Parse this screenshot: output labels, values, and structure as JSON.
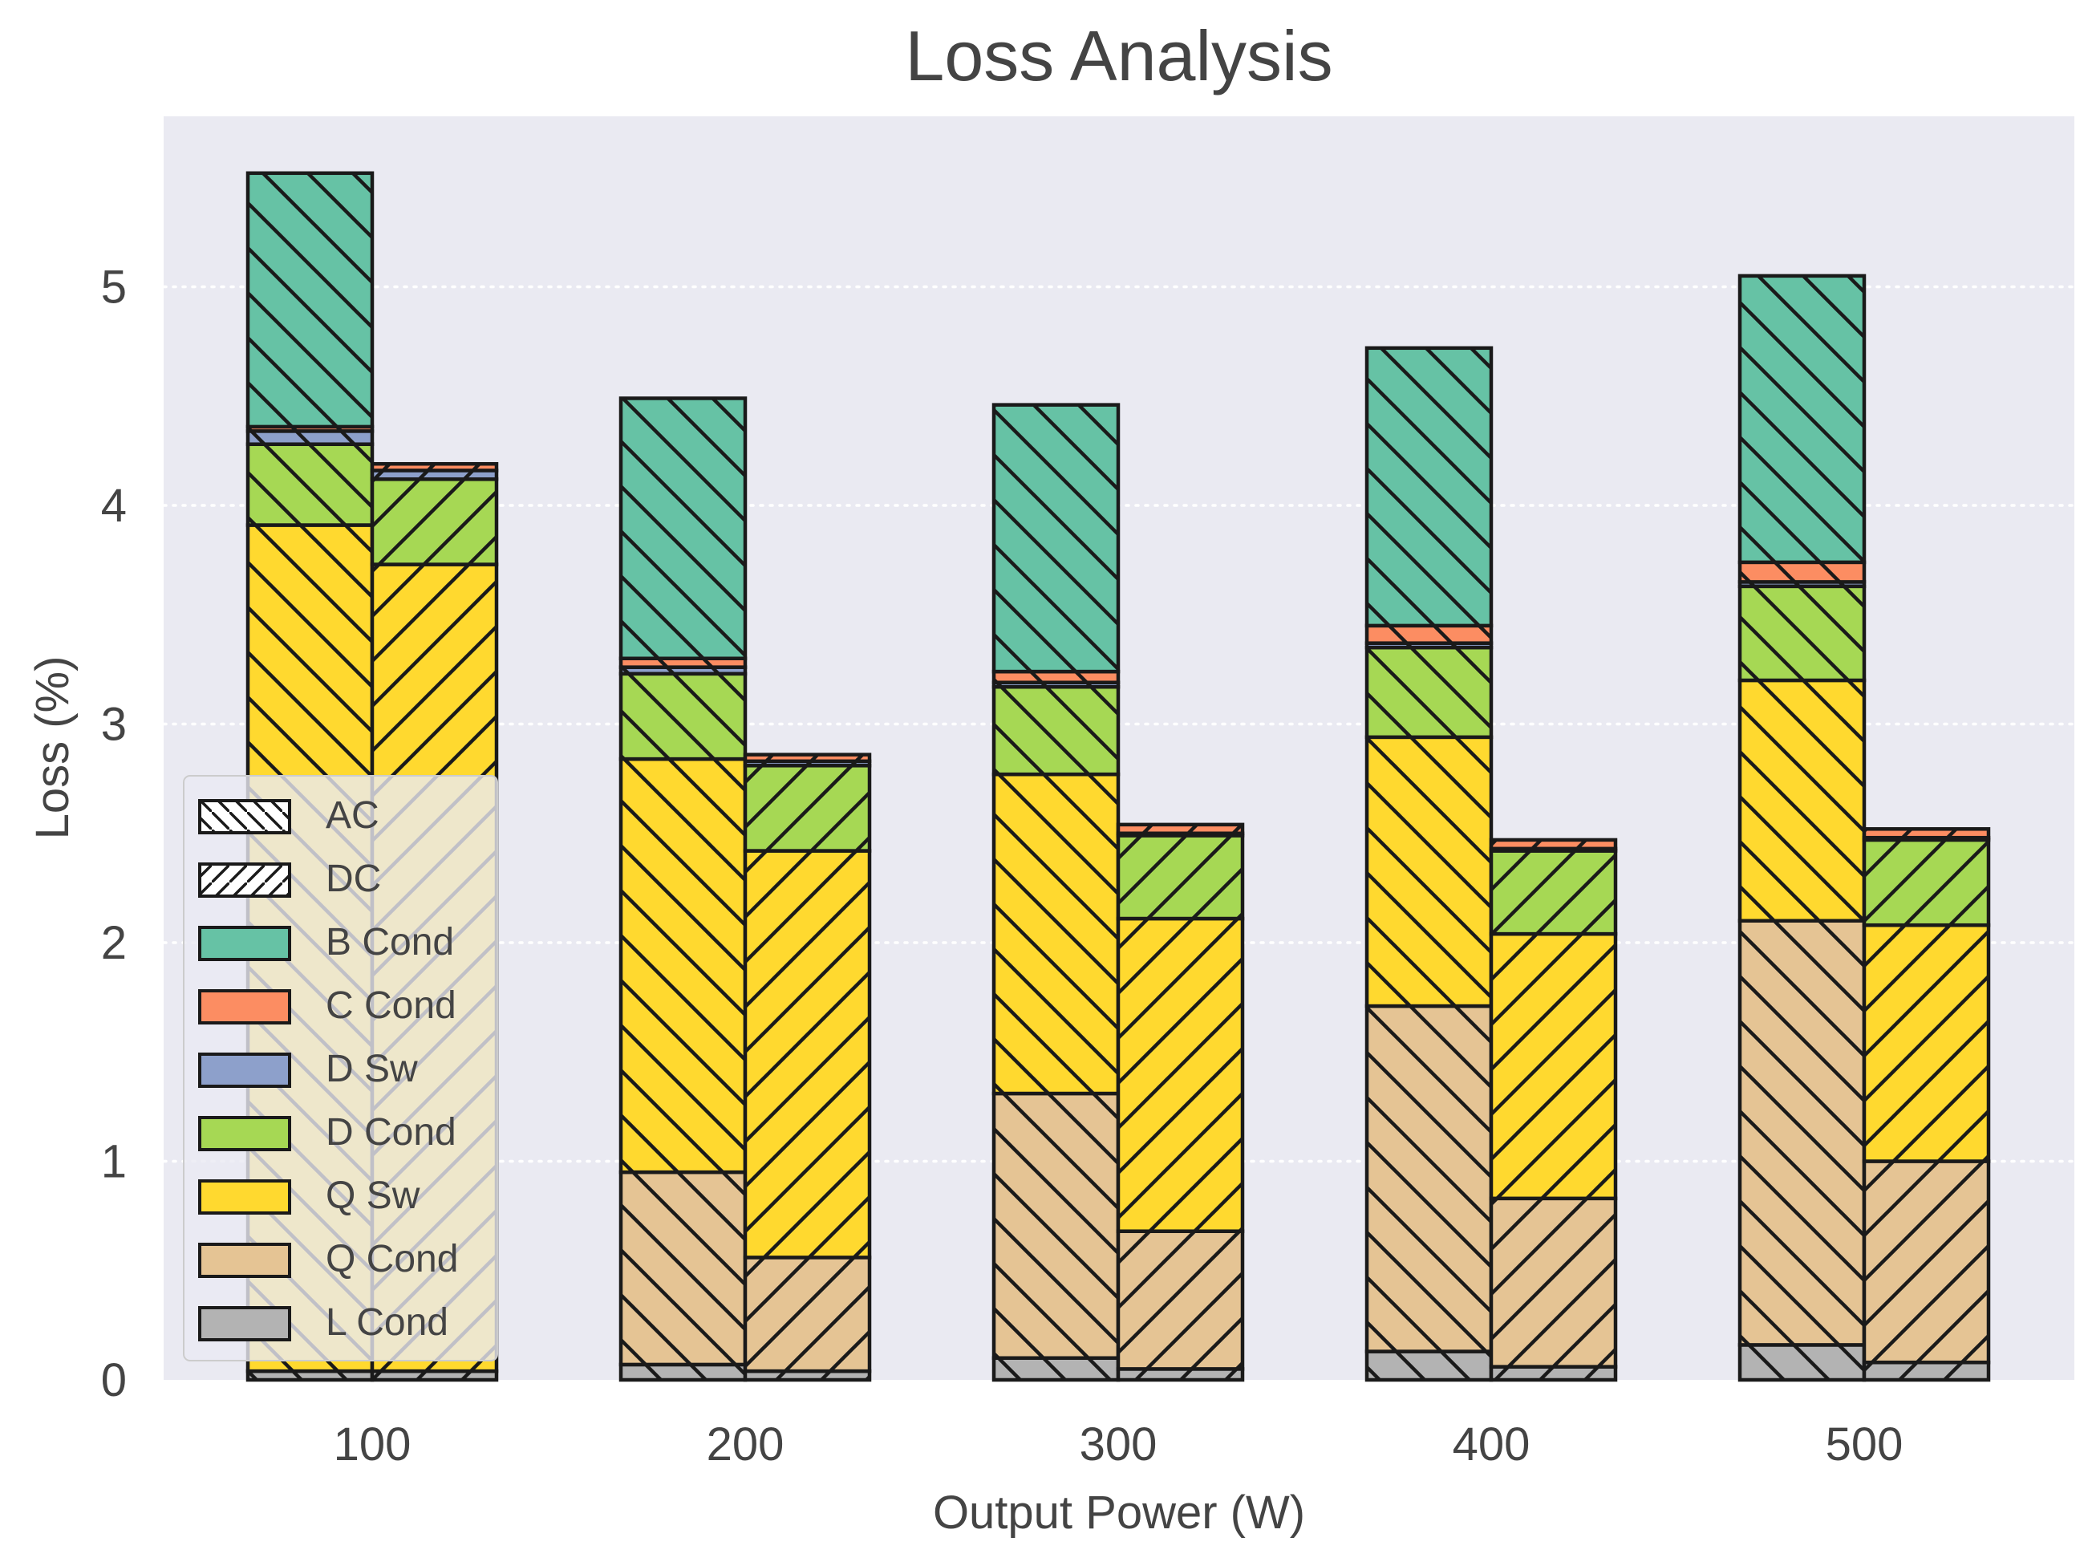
{
  "chart_data": {
    "type": "bar",
    "subtype": "stacked-grouped",
    "title": "Loss Analysis",
    "xlabel": "Output Power (W)",
    "ylabel": "Loss (%)",
    "categories": [
      "100",
      "200",
      "300",
      "400",
      "500"
    ],
    "yticks": [
      "0",
      "1",
      "2",
      "3",
      "4",
      "5"
    ],
    "ylim": [
      0,
      5.8
    ],
    "grid": "horizontal dotted",
    "legend_position": "lower-left",
    "groups": [
      {
        "name": "AC",
        "hatch": "backslash"
      },
      {
        "name": "DC",
        "hatch": "slash"
      }
    ],
    "series": [
      {
        "name": "L Cond",
        "color": "#b3b3b3",
        "values": {
          "AC": [
            0.04,
            0.07,
            0.1,
            0.13,
            0.16
          ],
          "DC": [
            0.04,
            0.04,
            0.05,
            0.06,
            0.08
          ]
        }
      },
      {
        "name": "Q Cond",
        "color": "#e5c494",
        "values": {
          "AC": [
            0.0,
            0.88,
            1.21,
            1.58,
            1.94
          ],
          "DC": [
            0.0,
            0.52,
            0.63,
            0.77,
            0.92
          ]
        }
      },
      {
        "name": "Q Sw",
        "color": "#ffd92f",
        "values": {
          "AC": [
            3.87,
            1.89,
            1.46,
            1.23,
            1.1
          ],
          "DC": [
            3.69,
            1.86,
            1.43,
            1.21,
            1.08
          ]
        }
      },
      {
        "name": "D Cond",
        "color": "#a6d854",
        "values": {
          "AC": [
            0.37,
            0.39,
            0.4,
            0.41,
            0.43
          ],
          "DC": [
            0.39,
            0.39,
            0.38,
            0.38,
            0.39
          ]
        }
      },
      {
        "name": "D Sw",
        "color": "#8da0cb",
        "values": {
          "AC": [
            0.06,
            0.03,
            0.02,
            0.02,
            0.02
          ],
          "DC": [
            0.04,
            0.02,
            0.01,
            0.01,
            0.01
          ]
        }
      },
      {
        "name": "C Cond",
        "color": "#fc8d62",
        "values": {
          "AC": [
            0.02,
            0.04,
            0.05,
            0.08,
            0.09
          ],
          "DC": [
            0.03,
            0.03,
            0.04,
            0.04,
            0.04
          ]
        }
      },
      {
        "name": "B Cond",
        "color": "#66c2a5",
        "values": {
          "AC": [
            1.16,
            1.19,
            1.22,
            1.27,
            1.31
          ],
          "DC": [
            0.0,
            0.0,
            0.0,
            0.0,
            0.0
          ]
        }
      }
    ],
    "legend_order": [
      "AC",
      "DC",
      "B Cond",
      "C Cond",
      "D Sw",
      "D Cond",
      "Q Sw",
      "Q Cond",
      "L Cond"
    ]
  }
}
